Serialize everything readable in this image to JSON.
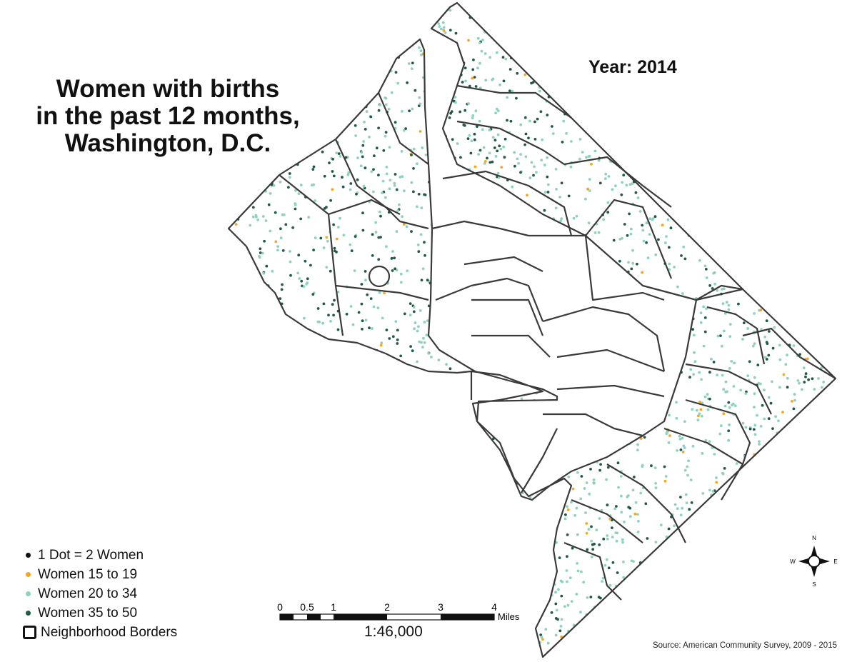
{
  "title_lines": [
    "Women with births",
    "in the past 12 months,",
    "Washington, D.C."
  ],
  "year_label": "Year: 2014",
  "legend": {
    "dot_note": "1 Dot = 2 Women",
    "items": [
      {
        "label": "Women 15 to 19",
        "color": "#f5a623"
      },
      {
        "label": "Women 20 to 34",
        "color": "#8fd1c1"
      },
      {
        "label": "Women 35 to 50",
        "color": "#1e5a46"
      }
    ],
    "borders_label": "Neighborhood Borders",
    "dot_note_color": "#111111"
  },
  "scale": {
    "tick_labels": [
      "0",
      "0.5",
      "1",
      "2",
      "3",
      "4"
    ],
    "unit": "Miles",
    "ratio": "1:46,000"
  },
  "compass": {
    "n": "N",
    "s": "S",
    "e": "E",
    "w": "W"
  },
  "source": "Source: American Community Survey, 2009 - 2015"
}
